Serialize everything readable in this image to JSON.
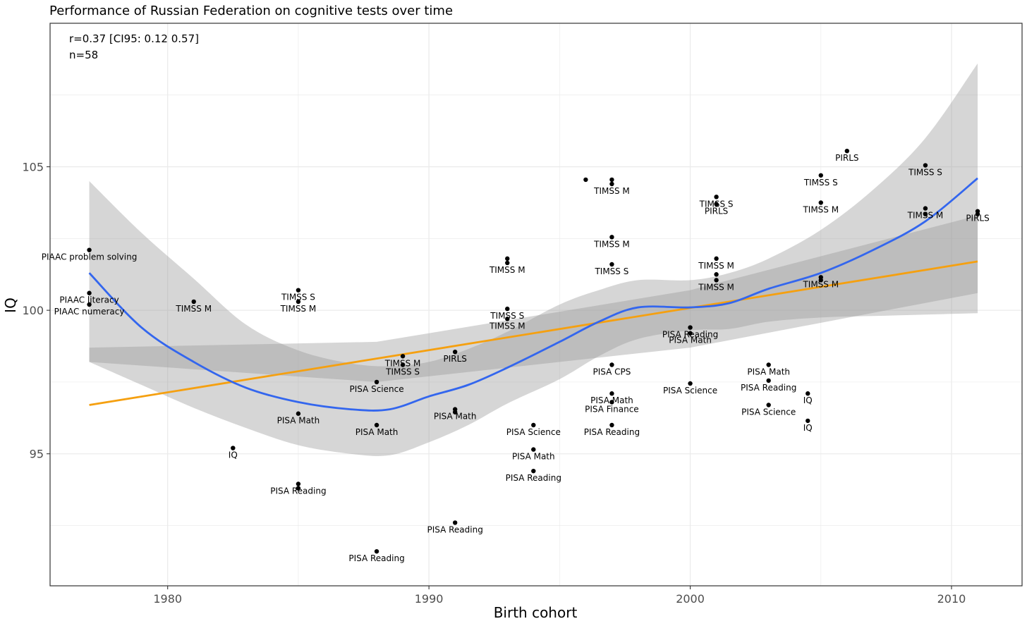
{
  "chart_data": {
    "type": "scatter",
    "title": "Performance of Russian Federation on cognitive tests over time",
    "xlabel": "Birth cohort",
    "ylabel": "IQ",
    "xlim": [
      1975.5,
      2012.7
    ],
    "ylim": [
      90.4,
      110.0
    ],
    "x_ticks": [
      1980,
      1990,
      2000,
      2010
    ],
    "y_ticks": [
      95,
      100,
      105
    ],
    "grid": true,
    "stats": {
      "correlation": "r=0.37 [CI95: 0.12 0.57]",
      "n": "n=58"
    },
    "colors": {
      "points": "#000000",
      "linear_fit": "#f5a010",
      "loess_fit": "#3366ee",
      "confidence_band": "#999999",
      "grid": "#ebebeb",
      "panel_border": "#333333"
    },
    "points": [
      {
        "x": 1977.0,
        "y": 102.1,
        "label": "PIAAC problem solving"
      },
      {
        "x": 1977.0,
        "y": 100.6,
        "label": "PIAAC literacy"
      },
      {
        "x": 1977.0,
        "y": 100.2,
        "label": "PIAAC numeracy"
      },
      {
        "x": 1981.0,
        "y": 100.3,
        "label": "TIMSS M"
      },
      {
        "x": 1982.5,
        "y": 95.2,
        "label": "IQ"
      },
      {
        "x": 1985.0,
        "y": 100.7,
        "label": "TIMSS S"
      },
      {
        "x": 1985.0,
        "y": 100.3,
        "label": "TIMSS M"
      },
      {
        "x": 1985.0,
        "y": 96.4,
        "label": "PISA Math"
      },
      {
        "x": 1985.0,
        "y": 93.95,
        "label": "PISA Reading"
      },
      {
        "x": 1985.0,
        "y": 93.8,
        "label": null
      },
      {
        "x": 1988.0,
        "y": 97.5,
        "label": "PISA Science"
      },
      {
        "x": 1988.0,
        "y": 96.0,
        "label": "PISA Math"
      },
      {
        "x": 1988.0,
        "y": 91.6,
        "label": "PISA Reading"
      },
      {
        "x": 1989.0,
        "y": 98.4,
        "label": "TIMSS M"
      },
      {
        "x": 1989.0,
        "y": 98.1,
        "label": "TIMSS S"
      },
      {
        "x": 1991.0,
        "y": 98.55,
        "label": "PIRLS"
      },
      {
        "x": 1991.0,
        "y": 96.55,
        "label": "PISA Math"
      },
      {
        "x": 1991.0,
        "y": 96.45,
        "label": null
      },
      {
        "x": 1991.0,
        "y": 92.6,
        "label": "PISA Reading"
      },
      {
        "x": 1993.0,
        "y": 101.8,
        "label": null
      },
      {
        "x": 1993.0,
        "y": 101.65,
        "label": "TIMSS M"
      },
      {
        "x": 1993.0,
        "y": 100.05,
        "label": "TIMSS S"
      },
      {
        "x": 1993.0,
        "y": 99.7,
        "label": "TIMSS M"
      },
      {
        "x": 1994.0,
        "y": 96.0,
        "label": "PISA Science"
      },
      {
        "x": 1994.0,
        "y": 95.15,
        "label": "PISA Math"
      },
      {
        "x": 1994.0,
        "y": 94.4,
        "label": "PISA Reading"
      },
      {
        "x": 1996.0,
        "y": 104.55,
        "label": null
      },
      {
        "x": 1997.0,
        "y": 104.55,
        "label": null
      },
      {
        "x": 1997.0,
        "y": 104.4,
        "label": "TIMSS M"
      },
      {
        "x": 1997.0,
        "y": 102.55,
        "label": "TIMSS M"
      },
      {
        "x": 1997.0,
        "y": 101.6,
        "label": "TIMSS S"
      },
      {
        "x": 1997.0,
        "y": 98.1,
        "label": "PISA CPS"
      },
      {
        "x": 1997.0,
        "y": 97.1,
        "label": "PISA Math"
      },
      {
        "x": 1997.0,
        "y": 96.8,
        "label": "PISA Finance"
      },
      {
        "x": 1997.0,
        "y": 96.0,
        "label": "PISA Reading"
      },
      {
        "x": 2000.0,
        "y": 99.4,
        "label": "PISA Reading"
      },
      {
        "x": 2000.0,
        "y": 99.2,
        "label": "PISA Math"
      },
      {
        "x": 2000.0,
        "y": 97.45,
        "label": "PISA Science"
      },
      {
        "x": 2001.0,
        "y": 103.95,
        "label": "TIMSS S"
      },
      {
        "x": 2001.0,
        "y": 103.7,
        "label": "PIRLS"
      },
      {
        "x": 2001.0,
        "y": 101.8,
        "label": "TIMSS M"
      },
      {
        "x": 2001.0,
        "y": 101.25,
        "label": null
      },
      {
        "x": 2001.0,
        "y": 101.05,
        "label": "TIMSS M"
      },
      {
        "x": 2003.0,
        "y": 98.1,
        "label": "PISA Math"
      },
      {
        "x": 2003.0,
        "y": 97.55,
        "label": "PISA Reading"
      },
      {
        "x": 2003.0,
        "y": 96.7,
        "label": "PISA Science"
      },
      {
        "x": 2004.5,
        "y": 97.1,
        "label": "IQ"
      },
      {
        "x": 2004.5,
        "y": 96.15,
        "label": "IQ"
      },
      {
        "x": 2005.0,
        "y": 104.7,
        "label": "TIMSS S"
      },
      {
        "x": 2005.0,
        "y": 103.75,
        "label": "TIMSS M"
      },
      {
        "x": 2005.0,
        "y": 101.15,
        "label": "TIMSS M"
      },
      {
        "x": 2005.0,
        "y": 101.05,
        "label": null
      },
      {
        "x": 2006.0,
        "y": 105.55,
        "label": "PIRLS"
      },
      {
        "x": 2009.0,
        "y": 105.05,
        "label": "TIMSS S"
      },
      {
        "x": 2009.0,
        "y": 103.55,
        "label": "TIMSS M"
      },
      {
        "x": 2009.0,
        "y": 103.35,
        "label": null
      },
      {
        "x": 2011.0,
        "y": 103.45,
        "label": "PIRLS"
      },
      {
        "x": 2011.0,
        "y": 103.35,
        "label": null
      }
    ],
    "linear_fit": {
      "x": [
        1977,
        2011
      ],
      "y": [
        96.7,
        101.7
      ]
    },
    "linear_band": {
      "x": [
        1977,
        1988,
        2000,
        2011
      ],
      "upper": [
        98.7,
        98.9,
        100.7,
        103.3
      ],
      "lower": [
        98.2,
        97.5,
        98.7,
        100.6
      ]
    },
    "loess_fit": {
      "x": [
        1977,
        1979,
        1981,
        1983,
        1985,
        1987,
        1988.5,
        1990,
        1991.5,
        1993,
        1995,
        1996.5,
        1998,
        2000,
        2001.5,
        2003,
        2005,
        2007,
        2009,
        2011
      ],
      "y": [
        101.3,
        99.4,
        98.2,
        97.3,
        96.8,
        96.55,
        96.55,
        97.0,
        97.4,
        98.0,
        98.9,
        99.6,
        100.1,
        100.1,
        100.25,
        100.75,
        101.3,
        102.1,
        103.1,
        104.6
      ]
    },
    "loess_band": {
      "x": [
        1977,
        1979,
        1981,
        1983,
        1985,
        1987,
        1988.5,
        1990,
        1991.5,
        1993,
        1995,
        1996.5,
        1998,
        2000,
        2001.5,
        2003,
        2005,
        2007,
        2009,
        2011
      ],
      "upper": [
        104.5,
        102.7,
        101.1,
        99.5,
        98.6,
        98.15,
        98.05,
        98.2,
        98.65,
        99.25,
        100.2,
        100.7,
        101.05,
        101.05,
        101.3,
        101.8,
        102.8,
        104.2,
        106.0,
        108.6
      ],
      "lower": [
        98.2,
        97.4,
        96.6,
        95.9,
        95.3,
        95.0,
        94.95,
        95.4,
        96.0,
        96.75,
        97.6,
        98.4,
        99.0,
        99.3,
        99.35,
        99.6,
        99.75,
        99.8,
        99.85,
        99.9
      ]
    }
  }
}
